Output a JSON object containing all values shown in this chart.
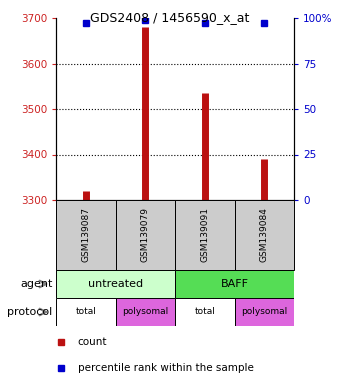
{
  "title": "GDS2408 / 1456590_x_at",
  "samples": [
    "GSM139087",
    "GSM139079",
    "GSM139091",
    "GSM139084"
  ],
  "count_values": [
    3320,
    3680,
    3535,
    3390
  ],
  "percentile_values": [
    97,
    99,
    97,
    97
  ],
  "ylim_left": [
    3300,
    3700
  ],
  "ylim_right": [
    0,
    100
  ],
  "yticks_left": [
    3300,
    3400,
    3500,
    3600,
    3700
  ],
  "yticks_right": [
    0,
    25,
    50,
    75,
    100
  ],
  "ytick_labels_right": [
    "0",
    "25",
    "50",
    "75",
    "100%"
  ],
  "bar_color": "#bb1111",
  "dot_color": "#0000cc",
  "left_axis_color": "#cc2222",
  "right_axis_color": "#0000cc",
  "sample_box_color": "#cccccc",
  "agent_colors": [
    "#ccffcc",
    "#55dd55"
  ],
  "protocol_colors": [
    "#ffffff",
    "#dd66dd",
    "#ffffff",
    "#dd66dd"
  ],
  "legend_count_color": "#bb1111",
  "legend_pct_color": "#0000cc",
  "bar_linewidth": 5
}
